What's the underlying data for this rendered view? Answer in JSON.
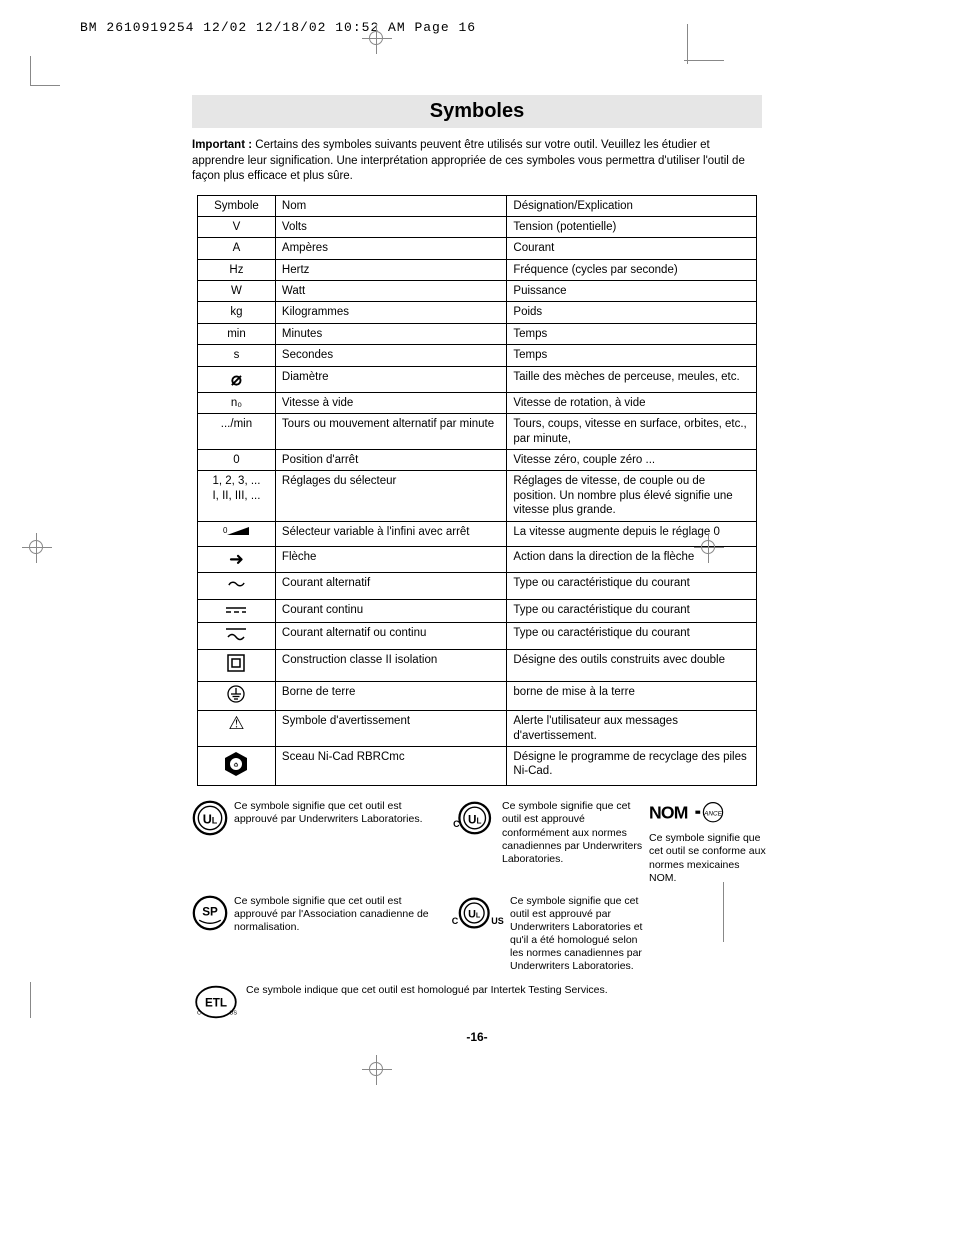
{
  "header_line": "BM 2610919254 12/02  12/18/02  10:52 AM  Page 16",
  "title": "Symboles",
  "intro_bold": "Important :",
  "intro_text": " Certains des symboles suivants peuvent être utilisés sur votre outil. Veuillez les étudier et apprendre leur signification. Une interprétation appropriée de ces symboles vous permettra d'utiliser l'outil de façon plus efficace et plus sûre.",
  "table": {
    "header": [
      "Symbole",
      "Nom",
      "Désignation/Explication"
    ],
    "rows": [
      {
        "sym": "V",
        "name": "Volts",
        "desc": "Tension (potentielle)"
      },
      {
        "sym": "A",
        "name": "Ampères",
        "desc": "Courant"
      },
      {
        "sym": "Hz",
        "name": "Hertz",
        "desc": "Fréquence (cycles par seconde)"
      },
      {
        "sym": "W",
        "name": "Watt",
        "desc": "Puissance"
      },
      {
        "sym": "kg",
        "name": "Kilogrammes",
        "desc": "Poids"
      },
      {
        "sym": "min",
        "name": "Minutes",
        "desc": "Temps"
      },
      {
        "sym": "s",
        "name": "Secondes",
        "desc": "Temps"
      },
      {
        "sym": "⌀",
        "name": "Diamètre",
        "desc": "Taille des mèches de perceuse, meules, etc."
      },
      {
        "sym": "n₀",
        "name": "Vitesse à vide",
        "desc": "Vitesse de rotation, à vide"
      },
      {
        "sym": ".../min",
        "name": "Tours ou mouvement alternatif par minute",
        "desc": "Tours, coups, vitesse en surface, orbites, etc., par minute,"
      },
      {
        "sym": "0",
        "name": "Position d'arrêt",
        "desc": "Vitesse zéro, couple zéro ..."
      },
      {
        "sym": "1, 2, 3, ...\nI, II, III, ...",
        "name": "Réglages du sélecteur",
        "desc": "Réglages de vitesse, de couple ou de position. Un nombre plus élevé signifie une vitesse plus grande."
      },
      {
        "sym": "svg:selector",
        "name": "Sélecteur variable à l'infini avec arrêt",
        "desc": "La vitesse augmente depuis le réglage 0"
      },
      {
        "sym": "➜",
        "name": "Flèche",
        "desc": "Action dans la direction de la flèche"
      },
      {
        "sym": "〜",
        "name": "Courant alternatif",
        "desc": "Type ou caractéristique du courant"
      },
      {
        "sym": "svg:dc",
        "name": "Courant continu",
        "desc": "Type ou caractéristique du courant"
      },
      {
        "sym": "svg:acdc",
        "name": "Courant alternatif ou continu",
        "desc": "Type ou caractéristique du courant"
      },
      {
        "sym": "svg:class2",
        "name": "Construction classe II isolation",
        "desc": "Désigne des outils construits avec double"
      },
      {
        "sym": "svg:earth",
        "name": "Borne de terre",
        "desc": "borne de mise à la terre"
      },
      {
        "sym": "⚠",
        "name": "Symbole d'avertissement",
        "desc": "Alerte l'utilisateur aux messages d'avertissement."
      },
      {
        "sym": "svg:rbrc",
        "name": "Sceau Ni-Cad RBRCmc",
        "desc": "Désigne le programme de recyclage des piles Ni-Cad."
      }
    ]
  },
  "certs": {
    "ul": "Ce symbole signifie que cet outil est approuvé par Underwriters Laboratories.",
    "csa": "Ce symbole signifie que cet outil est approuvé par l'Association canadienne de normalisation.",
    "etl": "Ce symbole indique que cet outil est homologué par Intertek Testing Services.",
    "cul": "Ce symbole signifie que cet outil est approuvé conformément aux normes canadiennes par Underwriters Laboratories.",
    "culus": "Ce symbole signifie que cet outil est approuvé par Underwriters Laboratories et qu'il a été homologué selon les normes canadiennes par Underwriters Laboratories.",
    "nom": "Ce symbole signifie que cet outil se conforme aux normes mexicaines NOM."
  },
  "page_number": "-16-"
}
